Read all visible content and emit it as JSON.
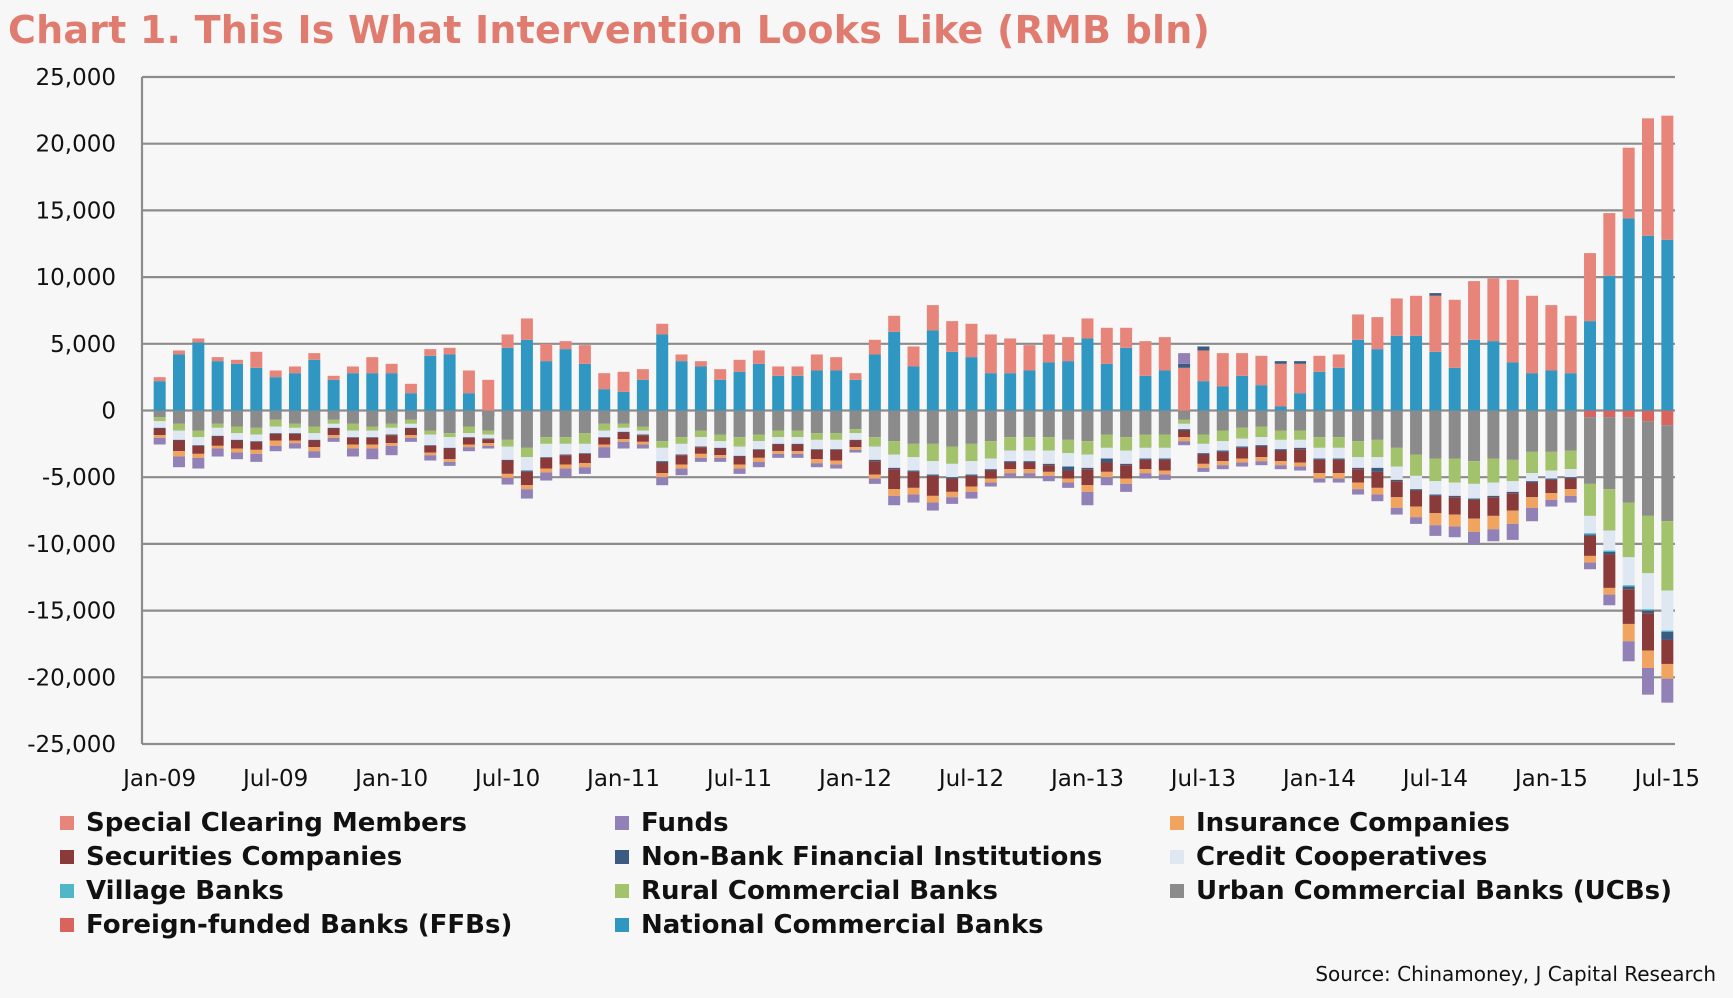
{
  "title": "Chart 1. This Is What Intervention Looks Like (RMB bln)",
  "source": "Source: Chinamoney, J Capital Research",
  "chart_data": {
    "type": "bar",
    "stacked": true,
    "title": "Chart 1. This Is What Intervention Looks Like (RMB bln)",
    "ylim": [
      -25000,
      25000
    ],
    "yticks": [
      25000,
      20000,
      15000,
      10000,
      5000,
      0,
      -5000,
      -10000,
      -15000,
      -20000,
      -25000
    ],
    "ytick_labels": [
      "25,000",
      "20,000",
      "15,000",
      "10,000",
      "5,000",
      "0",
      "-5,000",
      "-10,000",
      "-15,000",
      "-20,000",
      "-25,000"
    ],
    "grid": "horizontal",
    "legend_position": "bottom",
    "x_tick_labels": [
      "Jan-09",
      "Jul-09",
      "Jan-10",
      "Jul-10",
      "Jan-11",
      "Jul-11",
      "Jan-12",
      "Jul-12",
      "Jan-13",
      "Jul-13",
      "Jan-14",
      "Jul-14",
      "Jan-15",
      "Jul-15"
    ],
    "x_tick_positions": [
      0,
      6,
      12,
      18,
      24,
      30,
      36,
      42,
      48,
      54,
      60,
      66,
      72,
      78
    ],
    "categories": [
      "Jan-09",
      "Feb-09",
      "Mar-09",
      "Apr-09",
      "May-09",
      "Jun-09",
      "Jul-09",
      "Aug-09",
      "Sep-09",
      "Oct-09",
      "Nov-09",
      "Dec-09",
      "Jan-10",
      "Feb-10",
      "Mar-10",
      "Apr-10",
      "May-10",
      "Jun-10",
      "Jul-10",
      "Aug-10",
      "Sep-10",
      "Oct-10",
      "Nov-10",
      "Dec-10",
      "Jan-11",
      "Feb-11",
      "Mar-11",
      "Apr-11",
      "May-11",
      "Jun-11",
      "Jul-11",
      "Aug-11",
      "Sep-11",
      "Oct-11",
      "Nov-11",
      "Dec-11",
      "Jan-12",
      "Feb-12",
      "Mar-12",
      "Apr-12",
      "May-12",
      "Jun-12",
      "Jul-12",
      "Aug-12",
      "Sep-12",
      "Oct-12",
      "Nov-12",
      "Dec-12",
      "Jan-13",
      "Feb-13",
      "Mar-13",
      "Apr-13",
      "May-13",
      "Jun-13",
      "Jul-13",
      "Aug-13",
      "Sep-13",
      "Oct-13",
      "Nov-13",
      "Dec-13",
      "Jan-14",
      "Feb-14",
      "Mar-14",
      "Apr-14",
      "May-14",
      "Jun-14",
      "Jul-14",
      "Aug-14",
      "Sep-14",
      "Oct-14",
      "Nov-14",
      "Dec-14",
      "Jan-15",
      "Feb-15",
      "Mar-15",
      "Apr-15",
      "May-15",
      "Jun-15",
      "Jul-15"
    ],
    "positive": {
      "National Commercial Banks": [
        2200,
        4200,
        5100,
        3700,
        3500,
        3200,
        2500,
        2800,
        3800,
        2300,
        2800,
        2800,
        2800,
        1300,
        4100,
        4200,
        1300,
        -400,
        4700,
        5300,
        3700,
        4600,
        3500,
        1600,
        1400,
        2300,
        5700,
        3700,
        3300,
        2300,
        2900,
        3500,
        2600,
        2600,
        3000,
        3000,
        2300,
        4200,
        5900,
        3300,
        6000,
        4400,
        4000,
        2800,
        2800,
        3000,
        3600,
        3700,
        5400,
        3500,
        4700,
        2600,
        3000,
        0,
        2200,
        1800,
        2600,
        1900,
        300,
        1300,
        2900,
        3200,
        5300,
        4600,
        5600,
        5600,
        4400,
        3200,
        5300,
        5200,
        3600,
        2800,
        3000,
        2800,
        6700,
        10100,
        14400,
        13100,
        12800
      ],
      "Special Clearing Members": [
        300,
        300,
        300,
        300,
        300,
        1200,
        500,
        500,
        500,
        300,
        500,
        1200,
        700,
        700,
        500,
        500,
        1700,
        2700,
        1000,
        1600,
        1300,
        600,
        1400,
        1200,
        1500,
        800,
        800,
        500,
        400,
        800,
        900,
        1000,
        700,
        700,
        1200,
        1000,
        500,
        1100,
        1200,
        1500,
        1900,
        2300,
        2500,
        2900,
        2600,
        1900,
        2100,
        1800,
        1500,
        2700,
        1500,
        2600,
        2500,
        3200,
        2300,
        2500,
        1700,
        2200,
        3200,
        2200,
        1200,
        1000,
        1900,
        2400,
        2800,
        3000,
        4200,
        5100,
        4400,
        4700,
        6200,
        5800,
        4900,
        4300,
        5100,
        4700,
        5300,
        8800,
        9300
      ],
      "Non-Bank Financial Institutions": [
        0,
        0,
        0,
        0,
        0,
        0,
        0,
        0,
        0,
        0,
        0,
        0,
        0,
        0,
        0,
        0,
        0,
        0,
        0,
        0,
        0,
        0,
        0,
        0,
        0,
        0,
        0,
        0,
        0,
        0,
        0,
        0,
        0,
        0,
        0,
        0,
        0,
        0,
        0,
        0,
        0,
        0,
        0,
        0,
        0,
        0,
        0,
        0,
        0,
        0,
        0,
        0,
        0,
        300,
        300,
        0,
        0,
        0,
        200,
        200,
        0,
        0,
        0,
        0,
        0,
        0,
        200,
        0,
        0,
        0,
        0,
        0,
        0,
        0,
        0,
        0,
        0,
        0,
        0
      ],
      "Funds": [
        0,
        0,
        0,
        0,
        0,
        0,
        0,
        0,
        0,
        0,
        0,
        0,
        0,
        0,
        0,
        0,
        0,
        0,
        0,
        0,
        0,
        0,
        0,
        0,
        0,
        0,
        0,
        0,
        0,
        0,
        0,
        0,
        0,
        0,
        0,
        0,
        0,
        0,
        0,
        0,
        0,
        0,
        0,
        0,
        0,
        0,
        0,
        0,
        0,
        0,
        0,
        0,
        0,
        800,
        0,
        0,
        0,
        0,
        0,
        0,
        0,
        0,
        0,
        0,
        0,
        0,
        0,
        0,
        0,
        0,
        0,
        0,
        0,
        0,
        0,
        0,
        0,
        0,
        0
      ]
    },
    "negative": {
      "Foreign-funded Banks (FFBs)": [
        0,
        0,
        0,
        0,
        0,
        0,
        0,
        0,
        0,
        0,
        0,
        0,
        0,
        0,
        0,
        0,
        0,
        0,
        0,
        0,
        0,
        0,
        0,
        0,
        0,
        0,
        0,
        0,
        0,
        0,
        0,
        0,
        0,
        0,
        0,
        0,
        0,
        0,
        0,
        0,
        0,
        0,
        0,
        0,
        0,
        0,
        0,
        0,
        0,
        0,
        0,
        0,
        0,
        0,
        0,
        0,
        0,
        0,
        0,
        0,
        0,
        0,
        0,
        0,
        0,
        0,
        0,
        0,
        0,
        0,
        0,
        0,
        0,
        0,
        -500,
        -500,
        -500,
        -800,
        -1100
      ],
      "Urban Commercial Banks (UCBs)": [
        -500,
        -1000,
        -1500,
        -1000,
        -1200,
        -1300,
        -700,
        -1000,
        -1200,
        -700,
        -1000,
        -1200,
        -1000,
        -700,
        -1500,
        -1700,
        -1200,
        -1500,
        -2200,
        -2800,
        -2000,
        -2000,
        -1700,
        -1000,
        -1000,
        -1200,
        -2300,
        -2000,
        -1500,
        -1800,
        -2000,
        -1800,
        -1500,
        -1500,
        -1700,
        -1700,
        -1400,
        -2000,
        -2300,
        -2500,
        -2500,
        -2700,
        -2500,
        -2300,
        -2000,
        -2000,
        -2000,
        -2200,
        -2300,
        -1800,
        -2000,
        -1800,
        -1800,
        -700,
        -1800,
        -1500,
        -1300,
        -1200,
        -1500,
        -1500,
        -2000,
        -2000,
        -2300,
        -2200,
        -2800,
        -3300,
        -3600,
        -3600,
        -3800,
        -3600,
        -3700,
        -3100,
        -3100,
        -3000,
        -5000,
        -5400,
        -6400,
        -7100,
        -7200
      ],
      "Rural Commercial Banks": [
        -300,
        -500,
        -500,
        -300,
        -500,
        -500,
        -500,
        -300,
        -500,
        -300,
        -500,
        -300,
        -300,
        -300,
        -300,
        -300,
        -500,
        -300,
        -500,
        -700,
        -500,
        -500,
        -800,
        -500,
        -300,
        -300,
        -500,
        -500,
        -500,
        -500,
        -700,
        -500,
        -500,
        -500,
        -500,
        -500,
        -300,
        -700,
        -1000,
        -1000,
        -1300,
        -1300,
        -1300,
        -1300,
        -1000,
        -1000,
        -1000,
        -1000,
        -1000,
        -1000,
        -1000,
        -1000,
        -1000,
        -300,
        -700,
        -800,
        -800,
        -800,
        -700,
        -700,
        -800,
        -800,
        -1200,
        -1300,
        -1400,
        -1600,
        -1700,
        -1800,
        -1700,
        -1800,
        -1600,
        -1600,
        -1400,
        -1400,
        -2400,
        -3100,
        -4100,
        -4300,
        -5200
      ],
      "Credit Cooperatives": [
        -500,
        -700,
        -600,
        -600,
        -500,
        -500,
        -500,
        -400,
        -500,
        -300,
        -500,
        -500,
        -500,
        -300,
        -800,
        -800,
        -300,
        -300,
        -1000,
        -1000,
        -1000,
        -800,
        -700,
        -500,
        -300,
        -300,
        -1000,
        -800,
        -700,
        -500,
        -700,
        -600,
        -500,
        -500,
        -700,
        -700,
        -500,
        -1000,
        -1000,
        -1000,
        -1000,
        -1000,
        -1000,
        -800,
        -800,
        -800,
        -1000,
        -1000,
        -1000,
        -800,
        -1000,
        -800,
        -800,
        -400,
        -700,
        -700,
        -600,
        -600,
        -700,
        -600,
        -800,
        -800,
        -800,
        -800,
        -1000,
        -1000,
        -1000,
        -1000,
        -1100,
        -1000,
        -800,
        -600,
        -600,
        -600,
        -1300,
        -1500,
        -2100,
        -2700,
        -3000
      ],
      "Village Banks": [
        0,
        0,
        0,
        0,
        0,
        0,
        0,
        0,
        0,
        0,
        0,
        0,
        0,
        0,
        0,
        0,
        0,
        0,
        0,
        0,
        0,
        0,
        0,
        0,
        0,
        0,
        0,
        0,
        0,
        0,
        0,
        0,
        0,
        0,
        0,
        0,
        0,
        0,
        0,
        0,
        0,
        0,
        0,
        0,
        0,
        0,
        0,
        0,
        0,
        0,
        0,
        0,
        0,
        0,
        0,
        0,
        0,
        0,
        0,
        0,
        0,
        0,
        0,
        0,
        0,
        0,
        0,
        0,
        0,
        0,
        0,
        0,
        0,
        0,
        -100,
        -100,
        -100,
        -100,
        -100
      ],
      "Non-Bank Financial Institutions": [
        -50,
        -50,
        -50,
        -50,
        -50,
        -50,
        -50,
        -50,
        -50,
        -50,
        -50,
        -50,
        -50,
        -50,
        -50,
        -50,
        -50,
        -50,
        -50,
        -100,
        -50,
        -50,
        -50,
        -50,
        -50,
        -50,
        -100,
        -50,
        -50,
        -50,
        -50,
        -50,
        -50,
        -50,
        -50,
        -50,
        -50,
        -100,
        -100,
        -100,
        -100,
        -100,
        -100,
        -100,
        -100,
        -100,
        -100,
        -300,
        -100,
        -300,
        -100,
        -100,
        -100,
        -100,
        -100,
        -100,
        -100,
        -100,
        -100,
        -100,
        -100,
        -100,
        -100,
        -300,
        -100,
        -100,
        -100,
        -100,
        -100,
        -100,
        -100,
        -100,
        -100,
        -100,
        -100,
        -200,
        -200,
        -200,
        -600
      ],
      "Securities Companies": [
        -500,
        -800,
        -600,
        -700,
        -600,
        -600,
        -500,
        -500,
        -500,
        -500,
        -500,
        -500,
        -600,
        -500,
        -500,
        -800,
        -500,
        -300,
        -1000,
        -1000,
        -800,
        -700,
        -700,
        -500,
        -500,
        -500,
        -800,
        -700,
        -500,
        -500,
        -600,
        -600,
        -500,
        -500,
        -700,
        -800,
        -500,
        -1000,
        -1500,
        -1200,
        -1500,
        -1000,
        -800,
        -600,
        -500,
        -500,
        -500,
        -600,
        -1200,
        -700,
        -1000,
        -700,
        -800,
        -500,
        -700,
        -700,
        -800,
        -800,
        -800,
        -1000,
        -1000,
        -1000,
        -1000,
        -1200,
        -1200,
        -1200,
        -1300,
        -1300,
        -1400,
        -1400,
        -1300,
        -1100,
        -1000,
        -800,
        -1500,
        -2500,
        -2600,
        -2800,
        -1800
      ],
      "Insurance Companies": [
        -200,
        -400,
        -300,
        -200,
        -300,
        -300,
        -400,
        -200,
        -300,
        -200,
        -300,
        -300,
        -200,
        -200,
        -200,
        -200,
        -200,
        -200,
        -300,
        -300,
        -300,
        -300,
        -300,
        -200,
        -200,
        -200,
        -300,
        -300,
        -300,
        -200,
        -300,
        -300,
        -200,
        -200,
        -300,
        -300,
        -200,
        -300,
        -500,
        -500,
        -500,
        -400,
        -400,
        -300,
        -300,
        -300,
        -300,
        -300,
        -500,
        -400,
        -400,
        -300,
        -300,
        -300,
        -300,
        -300,
        -300,
        -300,
        -300,
        -300,
        -400,
        -400,
        -500,
        -500,
        -800,
        -800,
        -900,
        -900,
        -1000,
        -1000,
        -1000,
        -800,
        -500,
        -500,
        -500,
        -500,
        -1300,
        -1300,
        -1100
      ],
      "Funds": [
        -500,
        -800,
        -800,
        -600,
        -500,
        -600,
        -400,
        -400,
        -500,
        -300,
        -600,
        -800,
        -700,
        -300,
        -400,
        -300,
        -300,
        -200,
        -500,
        -700,
        -600,
        -600,
        -500,
        -800,
        -500,
        -300,
        -600,
        -500,
        -300,
        -300,
        -400,
        -400,
        -300,
        -300,
        -300,
        -300,
        -200,
        -400,
        -700,
        -600,
        -600,
        -500,
        -500,
        -300,
        -300,
        -300,
        -400,
        -400,
        -1000,
        -600,
        -600,
        -400,
        -400,
        -300,
        -300,
        -300,
        -300,
        -300,
        -300,
        -300,
        -300,
        -300,
        -400,
        -500,
        -500,
        -500,
        -800,
        -800,
        -900,
        -900,
        -1200,
        -1000,
        -500,
        -500,
        -500,
        -800,
        -1500,
        -2000,
        -1800
      ]
    },
    "legend": [
      {
        "name": "Special Clearing Members",
        "color": "#e8857b"
      },
      {
        "name": "Funds",
        "color": "#9181b6"
      },
      {
        "name": "Insurance Companies",
        "color": "#f0a460"
      },
      {
        "name": "Securities Companies",
        "color": "#8b3a3a"
      },
      {
        "name": "Non-Bank Financial Institutions",
        "color": "#3b5b80"
      },
      {
        "name": "Credit Cooperatives",
        "color": "#dfe7f2"
      },
      {
        "name": "Village Banks",
        "color": "#4fb7c8"
      },
      {
        "name": "Rural Commercial Banks",
        "color": "#a3c26c"
      },
      {
        "name": "Urban Commercial Banks (UCBs)",
        "color": "#8b8b8b"
      },
      {
        "name": "Foreign-funded Banks (FFBs)",
        "color": "#d9645e"
      },
      {
        "name": "National Commercial Banks",
        "color": "#2f97c2"
      }
    ]
  }
}
